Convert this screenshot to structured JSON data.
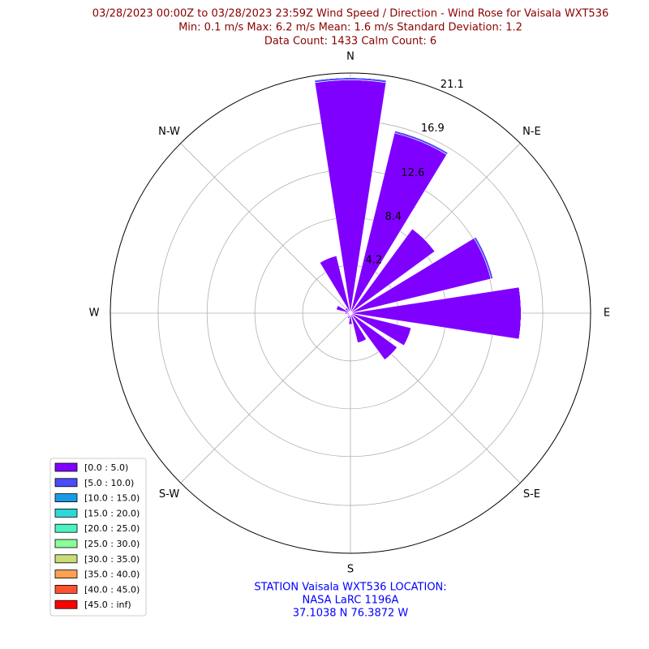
{
  "chart_data": {
    "type": "windrose",
    "title": [
      "03/28/2023 00:00Z to 03/28/2023 23:59Z Wind Speed / Direction - Wind Rose for Vaisala WXT536",
      "Min: 0.1 m/s   Max: 6.2 m/s   Mean: 1.6 m/s  Standard Deviation: 1.2",
      "Data Count: 1433  Calm Count:  6"
    ],
    "annotation": [
      "STATION Vaisala WXT536 LOCATION:",
      "NASA LaRC 1196A",
      "37.1038 N 76.3872 W"
    ],
    "categories": [
      "N",
      null,
      "N-E",
      null,
      "E",
      null,
      "S-E",
      null,
      "S",
      null,
      "S-W",
      null,
      "W",
      null,
      "N-W",
      null
    ],
    "series": [
      {
        "name": "[0.0 : 5.0)",
        "color": "#8000ff",
        "values": [
          20.5,
          16.3,
          9.2,
          12.7,
          15.0,
          5.5,
          5.1,
          2.7,
          1.0,
          0.5,
          0.3,
          0.3,
          0.5,
          1.3,
          0.6,
          5.2
        ]
      },
      {
        "name": "[5.0 : 10.0)",
        "color": "#4a4cf8",
        "values": [
          0.2,
          0.2,
          0,
          0.2,
          0,
          0,
          0,
          0,
          0,
          0,
          0,
          0,
          0,
          0,
          0,
          0
        ]
      },
      {
        "name": "[10.0 : 15.0)",
        "color": "#1a9ae6",
        "values": [
          0,
          0,
          0,
          0,
          0,
          0,
          0,
          0,
          0,
          0,
          0,
          0,
          0,
          0,
          0,
          0
        ]
      },
      {
        "name": "[15.0 : 20.0)",
        "color": "#2ad9d9",
        "values": [
          0,
          0,
          0,
          0,
          0,
          0,
          0,
          0,
          0,
          0,
          0,
          0,
          0,
          0,
          0,
          0
        ]
      },
      {
        "name": "[20.0 : 25.0)",
        "color": "#4cf2c0",
        "values": [
          0,
          0,
          0,
          0,
          0,
          0,
          0,
          0,
          0,
          0,
          0,
          0,
          0,
          0,
          0,
          0
        ]
      },
      {
        "name": "[25.0 : 30.0)",
        "color": "#8aff9a",
        "values": [
          0,
          0,
          0,
          0,
          0,
          0,
          0,
          0,
          0,
          0,
          0,
          0,
          0,
          0,
          0,
          0
        ]
      },
      {
        "name": "[30.0 : 35.0)",
        "color": "#c9dc78",
        "values": [
          0,
          0,
          0,
          0,
          0,
          0,
          0,
          0,
          0,
          0,
          0,
          0,
          0,
          0,
          0,
          0
        ]
      },
      {
        "name": "[35.0 : 40.0)",
        "color": "#ffa052",
        "values": [
          0,
          0,
          0,
          0,
          0,
          0,
          0,
          0,
          0,
          0,
          0,
          0,
          0,
          0,
          0,
          0
        ]
      },
      {
        "name": "[40.0 : 45.0)",
        "color": "#ff5030",
        "values": [
          0,
          0,
          0,
          0,
          0,
          0,
          0,
          0,
          0,
          0,
          0,
          0,
          0,
          0,
          0,
          0
        ]
      },
      {
        "name": "[45.0 : inf)",
        "color": "#ff0000",
        "values": [
          0,
          0,
          0,
          0,
          0,
          0,
          0,
          0,
          0,
          0,
          0,
          0,
          0,
          0,
          0,
          0
        ]
      }
    ],
    "ylim": [
      0,
      21.1
    ],
    "yticks": [
      4.2,
      8.4,
      12.6,
      16.9,
      21.1
    ],
    "grid": true,
    "legend": "lower left"
  }
}
